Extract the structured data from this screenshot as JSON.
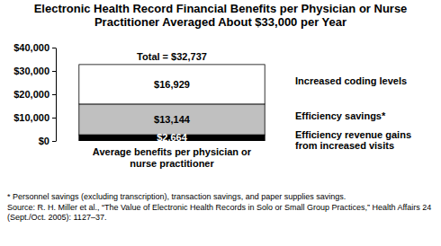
{
  "chart_data": {
    "type": "bar",
    "title": "Electronic Health Record Financial Benefits per Physician or Nurse Practitioner Averaged About $33,000 per Year",
    "categories": [
      "Average benefits per physician or nurse practitioner"
    ],
    "series": [
      {
        "name": "Efficiency revenue gains from increased visits",
        "color": "#000000",
        "values": [
          2664
        ],
        "value_labels": [
          "$2,664"
        ]
      },
      {
        "name": "Efficiency savings*",
        "color": "#c0c0c0",
        "values": [
          13144
        ],
        "value_labels": [
          "$13,144"
        ]
      },
      {
        "name": "Increased coding levels",
        "color": "#ffffff",
        "values": [
          16929
        ],
        "value_labels": [
          "$16,929"
        ]
      }
    ],
    "stacked": true,
    "data_labels": true,
    "grid": false,
    "ylim": [
      0,
      40000
    ],
    "yticks": [
      {
        "value": 0,
        "label": "$0"
      },
      {
        "value": 10000,
        "label": "$10,000"
      },
      {
        "value": 20000,
        "label": "$20,000"
      },
      {
        "value": 30000,
        "label": "$30,000"
      },
      {
        "value": 40000,
        "label": "$40,000"
      }
    ],
    "annotations": [
      {
        "text": "Total = $32,737"
      }
    ],
    "notes": [
      "* Personnel savings (excluding transcription), transaction savings, and paper supplies savings.",
      "Source: R. H. Miller et al., “The Value of Electronic Health Records in Solo or Small Group Practices,” Health Affairs 24 (Sept./Oct. 2005): 1127–37."
    ]
  }
}
